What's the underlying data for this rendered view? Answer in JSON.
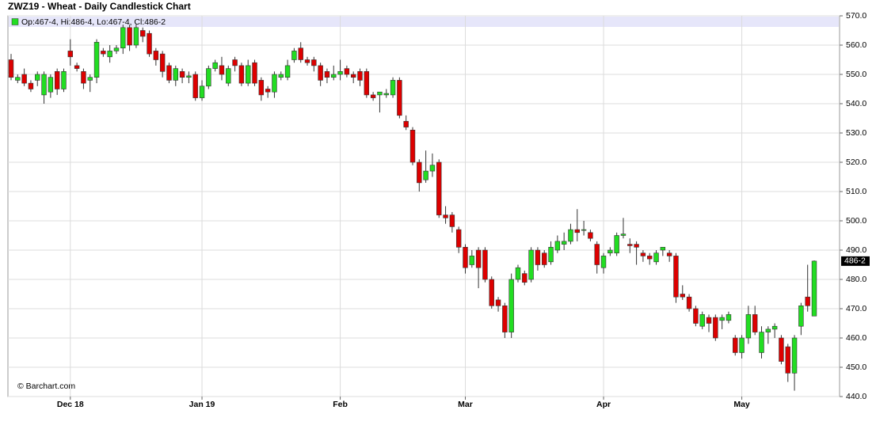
{
  "chart_data": {
    "type": "candlestick",
    "title": "ZWZ19 - Wheat - Daily Candlestick Chart",
    "legend": "Op:467-4, Hi:486-4, Lo:467-4, Cl:486-2",
    "source": "© Barchart.com",
    "up_color": "#22dd22",
    "down_color": "#dd0000",
    "grid": true,
    "ylim": [
      440,
      570
    ],
    "yticks": [
      {
        "value": 440,
        "label": "440.0"
      },
      {
        "value": 450,
        "label": "450.0"
      },
      {
        "value": 460,
        "label": "460.0"
      },
      {
        "value": 470,
        "label": "470.0"
      },
      {
        "value": 480,
        "label": "480.0"
      },
      {
        "value": 490,
        "label": "490.0"
      },
      {
        "value": 500,
        "label": "500.0"
      },
      {
        "value": 510,
        "label": "510.0"
      },
      {
        "value": 520,
        "label": "520.0"
      },
      {
        "value": 530,
        "label": "530.0"
      },
      {
        "value": 540,
        "label": "540.0"
      },
      {
        "value": 550,
        "label": "550.0"
      },
      {
        "value": 560,
        "label": "560.0"
      },
      {
        "value": 570,
        "label": "570.0"
      }
    ],
    "last_price": {
      "value": 486.25,
      "label": "486-2"
    },
    "categories": [
      null,
      null,
      null,
      null,
      null,
      null,
      null,
      null,
      null,
      "Dec 18",
      null,
      null,
      null,
      null,
      null,
      null,
      null,
      null,
      null,
      null,
      null,
      null,
      null,
      null,
      null,
      null,
      null,
      null,
      null,
      "Jan 19",
      null,
      null,
      null,
      null,
      null,
      null,
      null,
      null,
      null,
      null,
      null,
      null,
      null,
      null,
      null,
      null,
      null,
      null,
      null,
      null,
      "Feb",
      null,
      null,
      null,
      null,
      null,
      null,
      null,
      null,
      null,
      null,
      null,
      null,
      null,
      null,
      null,
      null,
      null,
      null,
      "Mar",
      null,
      null,
      null,
      null,
      null,
      null,
      null,
      null,
      null,
      null,
      null,
      null,
      null,
      null,
      null,
      null,
      null,
      null,
      null,
      null,
      "Apr",
      null,
      null,
      null,
      null,
      null,
      null,
      null,
      null,
      null,
      null,
      null,
      null,
      null,
      null,
      null,
      null,
      null,
      null,
      null,
      null,
      "May",
      null,
      null,
      null,
      null,
      null,
      null,
      null,
      null,
      null,
      null,
      null
    ],
    "open": [
      555,
      548,
      550,
      547,
      548,
      543,
      544,
      551,
      545,
      558,
      553,
      551,
      548,
      549,
      558,
      556,
      558,
      559,
      566,
      560,
      565,
      564,
      558,
      557,
      553,
      548,
      551,
      549,
      550,
      542,
      546,
      552,
      553,
      547,
      555,
      553,
      547,
      554,
      548,
      545,
      544,
      549,
      549,
      555,
      559,
      555,
      555,
      553,
      551,
      549,
      550,
      552,
      550,
      551,
      551,
      543,
      543,
      543,
      543,
      548,
      534,
      531,
      520,
      514,
      517,
      520,
      502,
      502,
      497,
      491,
      485,
      490,
      490,
      480,
      473,
      471,
      462,
      480,
      482,
      480,
      490,
      489,
      486,
      490,
      492,
      493,
      497,
      497,
      496,
      492,
      484,
      489,
      489,
      495,
      492,
      492,
      489,
      488,
      486,
      490,
      489,
      488,
      475,
      474,
      470,
      464,
      467,
      467,
      466,
      466,
      460,
      455,
      460,
      468,
      455,
      462,
      463,
      460,
      457,
      448,
      464,
      474,
      467.5
    ],
    "high": [
      557,
      550,
      552,
      548,
      551,
      551,
      550,
      552,
      552,
      562,
      554,
      552,
      550,
      562,
      559,
      560,
      560,
      567,
      567,
      567,
      566,
      565,
      559,
      558,
      554,
      553,
      552,
      551,
      551,
      548,
      553,
      555,
      556,
      553,
      556,
      554,
      555,
      555,
      549,
      546,
      551,
      551,
      555,
      559,
      561,
      556,
      556,
      554,
      552,
      553,
      555,
      553,
      551,
      552,
      552,
      544,
      544,
      545,
      549,
      549,
      536,
      532,
      521,
      524,
      523,
      521,
      505,
      503,
      498,
      492,
      490,
      491,
      491,
      481,
      474,
      472,
      482,
      485,
      483,
      491,
      491,
      490,
      493,
      495,
      496,
      499,
      504,
      500,
      497,
      493,
      489,
      491,
      496,
      501,
      494,
      493,
      490,
      489,
      490,
      491,
      490,
      489,
      478,
      475,
      471,
      469,
      468,
      468,
      468,
      469,
      461,
      461,
      471,
      471,
      464,
      464,
      465,
      461,
      458,
      461,
      472,
      485,
      486.5
    ],
    "low": [
      548,
      547,
      546,
      544,
      546,
      540,
      542,
      543,
      544,
      553,
      551,
      545,
      544,
      547,
      556,
      554,
      557,
      557,
      558,
      559,
      561,
      556,
      553,
      549,
      547,
      546,
      547,
      547,
      541,
      541,
      545,
      551,
      548,
      546,
      551,
      546,
      546,
      546,
      541,
      542,
      542,
      548,
      548,
      554,
      554,
      553,
      551,
      546,
      547,
      548,
      548,
      549,
      547,
      546,
      542,
      541,
      537,
      542,
      542,
      535,
      531,
      519,
      510,
      513,
      515,
      501,
      499,
      496,
      489,
      482,
      484,
      477,
      479,
      470,
      469,
      460,
      460,
      479,
      478,
      479,
      483,
      484,
      485,
      489,
      490,
      492,
      493,
      495,
      493,
      482,
      482,
      488,
      488,
      494,
      489,
      485,
      486,
      485,
      485,
      488,
      486,
      472,
      473,
      469,
      464,
      463,
      462,
      459,
      463,
      465,
      454,
      453,
      458,
      461,
      453,
      458,
      460,
      451,
      445,
      442,
      461,
      469,
      467.5
    ],
    "close": [
      549,
      549,
      547,
      545,
      550,
      550,
      549,
      545,
      551,
      556,
      552,
      547,
      549,
      561,
      557,
      558,
      559,
      566,
      560,
      566,
      563,
      557,
      555,
      551,
      548,
      552,
      549,
      549.5,
      542,
      546,
      552,
      554,
      550,
      552,
      553,
      547,
      553,
      547,
      543,
      544,
      550,
      550,
      553,
      558,
      555,
      554,
      553,
      548,
      549,
      550,
      551,
      550,
      549,
      548,
      543,
      542,
      544,
      543.5,
      548,
      536,
      532,
      520,
      513,
      517,
      519,
      502,
      501,
      498,
      491,
      484,
      488,
      484,
      480,
      471,
      471,
      462,
      480,
      484,
      479,
      490,
      485,
      485,
      491,
      493,
      493,
      497,
      496,
      497,
      494,
      485,
      488,
      490,
      495,
      495.5,
      491.5,
      491,
      488,
      487,
      489,
      491,
      488,
      474,
      474,
      470,
      465,
      468,
      465,
      460,
      467,
      468,
      455,
      460,
      468,
      462,
      462,
      463,
      464,
      452,
      448,
      460,
      471,
      471,
      486.25
    ]
  }
}
